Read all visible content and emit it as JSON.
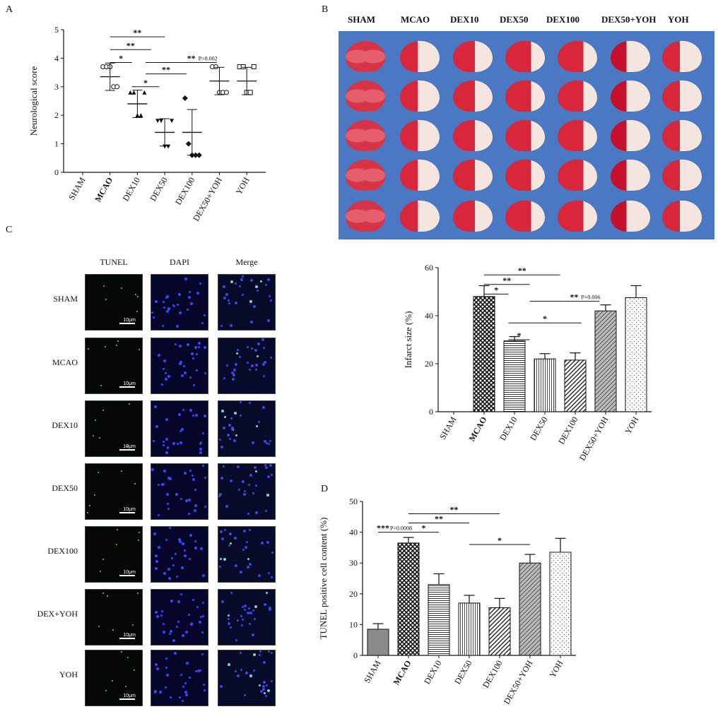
{
  "panels": {
    "A": "A",
    "B": "B",
    "C": "C",
    "D": "D"
  },
  "groups": [
    "SHAM",
    "MCAO",
    "DEX10",
    "DEX50",
    "DEX100",
    "DEX50+YOH",
    "YOH"
  ],
  "chart_data": [
    {
      "id": "A",
      "type": "scatter",
      "categories": [
        "SHAM",
        "MCAO",
        "DEX10",
        "DEX50",
        "DEX100",
        "DEX50+YOH",
        "YOH"
      ],
      "ylabel": "Neurological score",
      "xlabel": "",
      "ylim": [
        0,
        5
      ],
      "yticks": [
        0,
        1,
        2,
        3,
        4,
        5
      ],
      "points": [
        [],
        [
          3.7,
          3.7,
          3.7,
          3.0,
          3.0
        ],
        [
          2.8,
          2.8,
          2.0,
          2.0,
          2.8
        ],
        [
          1.8,
          1.8,
          0.9,
          0.9,
          1.8
        ],
        [
          2.6,
          1.0,
          0.6,
          0.6,
          0.6
        ],
        [
          3.7,
          3.7,
          2.8,
          2.8,
          2.8
        ],
        [
          3.7,
          3.7,
          2.8,
          2.8,
          3.7
        ]
      ],
      "means": [
        null,
        3.35,
        2.4,
        1.4,
        1.4,
        3.2,
        3.2
      ],
      "errors": [
        null,
        0.48,
        0.48,
        0.48,
        0.8,
        0.48,
        0.48
      ],
      "annotations": [
        {
          "from": 1,
          "to": 3,
          "y": 4.75,
          "label": "**"
        },
        {
          "from": 1,
          "to": 2.5,
          "y": 4.3,
          "label": "**"
        },
        {
          "from": 1,
          "to": 1.8,
          "y": 3.85,
          "label": "*"
        },
        {
          "from": 2.3,
          "to": 4.9,
          "y": 3.85,
          "label": "**",
          "pvalue": "P=0.002"
        },
        {
          "from": 2.3,
          "to": 3.8,
          "y": 3.45,
          "label": "**"
        },
        {
          "from": 1.8,
          "to": 2.8,
          "y": 3.0,
          "label": "*"
        }
      ]
    },
    {
      "id": "B",
      "type": "bar",
      "categories": [
        "SHAM",
        "MCAO",
        "DEX10",
        "DEX50",
        "DEX100",
        "DEX50+YOH",
        "YOH"
      ],
      "ylabel": "Infarct size (%)",
      "xlabel": "",
      "ylim": [
        0,
        60
      ],
      "yticks": [
        0,
        20,
        40,
        60
      ],
      "values": [
        0,
        48,
        29.5,
        22,
        21.5,
        42,
        47.5
      ],
      "errors": [
        0,
        4.5,
        1.8,
        2.2,
        3.0,
        2.5,
        5.0
      ],
      "annotations": [
        {
          "from": 1,
          "to": 3.5,
          "y": 57,
          "label": "**"
        },
        {
          "from": 1,
          "to": 2.5,
          "y": 53,
          "label": "**"
        },
        {
          "from": 1,
          "to": 1.8,
          "y": 49,
          "label": "*"
        },
        {
          "from": 2.5,
          "to": 4.8,
          "y": 46,
          "label": "**",
          "pvalue": "P=0.006"
        },
        {
          "from": 1.8,
          "to": 4.2,
          "y": 37,
          "label": "*"
        },
        {
          "from": 1.8,
          "to": 2.5,
          "y": 30,
          "label": "*"
        }
      ]
    },
    {
      "id": "D",
      "type": "bar",
      "categories": [
        "SHAM",
        "MCAO",
        "DEX10",
        "DEX50",
        "DEX100",
        "DEX50+YOH",
        "YOH"
      ],
      "ylabel": "TUNEL positive cell content (%)",
      "xlabel": "",
      "ylim": [
        0,
        50
      ],
      "yticks": [
        0,
        10,
        20,
        30,
        40,
        50
      ],
      "values": [
        8.5,
        36.5,
        23,
        17,
        15.5,
        30,
        33.5
      ],
      "errors": [
        1.8,
        1.8,
        3.5,
        2.5,
        3.0,
        2.8,
        4.5
      ],
      "annotations": [
        {
          "from": 1,
          "to": 4,
          "y": 46,
          "label": "**"
        },
        {
          "from": 1,
          "to": 3,
          "y": 43,
          "label": "**"
        },
        {
          "from": 1,
          "to": 2,
          "y": 40,
          "label": "*"
        },
        {
          "from": 0,
          "to": 1,
          "y": 40,
          "label": "***",
          "pvalue": "P=0.0008"
        },
        {
          "from": 3,
          "to": 5,
          "y": 36,
          "label": "*"
        }
      ]
    }
  ],
  "tunel": {
    "columns": [
      "TUNEL",
      "DAPI",
      "Merge"
    ],
    "rows": [
      "SHAM",
      "MCAO",
      "DEX10",
      "DEX50",
      "DEX100",
      "DEX+YOH",
      "YOH"
    ],
    "scale": "10μm"
  }
}
